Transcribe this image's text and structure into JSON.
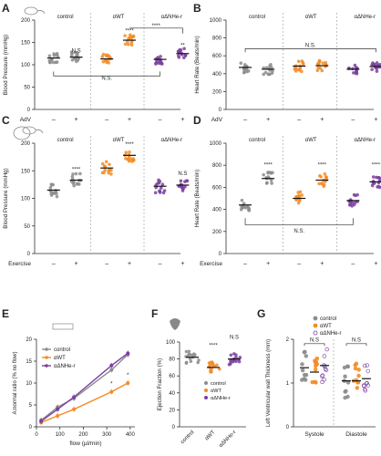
{
  "panel_letters": [
    "A",
    "B",
    "C",
    "D",
    "E",
    "F",
    "G"
  ],
  "colors": {
    "control": "#8c8c8c",
    "awt": "#f28c28",
    "adn": "#7b3fa0",
    "axis": "#333333",
    "dash": "#9a9a9a"
  },
  "groups": [
    "control",
    "α^WT",
    "αΔN^He-r"
  ],
  "groups_display": [
    "control",
    "αWT",
    "αΔNHe-r"
  ],
  "chart_data": [
    {
      "panel": "A",
      "type": "scatter",
      "ylabel": "Blood Pressure (mmHg)",
      "ylim": [
        0,
        200
      ],
      "yticks": [
        0,
        50,
        100,
        150,
        200
      ],
      "row_label": "AdV",
      "row_values": [
        "–",
        "+",
        "–",
        "+",
        "–",
        "+"
      ],
      "series": [
        {
          "group": "control",
          "treatment": "–",
          "mean": 115
        },
        {
          "group": "control",
          "treatment": "+",
          "mean": 117
        },
        {
          "group": "α^WT",
          "treatment": "–",
          "mean": 113
        },
        {
          "group": "α^WT",
          "treatment": "+",
          "mean": 155
        },
        {
          "group": "αΔN^He-r",
          "treatment": "–",
          "mean": 112
        },
        {
          "group": "αΔN^He-r",
          "treatment": "+",
          "mean": 125
        }
      ],
      "annotations": [
        "N.S",
        "****",
        "****",
        "**",
        "N.S."
      ]
    },
    {
      "panel": "B",
      "type": "scatter",
      "ylabel": "Heart Rate (Beats/min)",
      "ylim": [
        0,
        1000
      ],
      "yticks": [
        0,
        200,
        400,
        600,
        800,
        1000
      ],
      "row_label": "AdV",
      "row_values": [
        "–",
        "+",
        "–",
        "+",
        "–",
        "+"
      ],
      "series": [
        {
          "group": "control",
          "treatment": "–",
          "mean": 470
        },
        {
          "group": "control",
          "treatment": "+",
          "mean": 450
        },
        {
          "group": "α^WT",
          "treatment": "–",
          "mean": 485
        },
        {
          "group": "α^WT",
          "treatment": "+",
          "mean": 490
        },
        {
          "group": "αΔN^He-r",
          "treatment": "–",
          "mean": 450
        },
        {
          "group": "αΔN^He-r",
          "treatment": "+",
          "mean": 480
        }
      ],
      "annotations": [
        "N.S."
      ]
    },
    {
      "panel": "C",
      "type": "scatter",
      "ylabel": "Blood Pressure (mmHg)",
      "ylim": [
        0,
        200
      ],
      "yticks": [
        0,
        50,
        100,
        150,
        200
      ],
      "row_label": "Exercise",
      "row_values": [
        "–",
        "+",
        "–",
        "+",
        "–",
        "+"
      ],
      "series": [
        {
          "group": "control",
          "treatment": "–",
          "mean": 115
        },
        {
          "group": "control",
          "treatment": "+",
          "mean": 133
        },
        {
          "group": "α^WT",
          "treatment": "–",
          "mean": 155
        },
        {
          "group": "α^WT",
          "treatment": "+",
          "mean": 178
        },
        {
          "group": "αΔN^He-r",
          "treatment": "–",
          "mean": 122
        },
        {
          "group": "αΔN^He-r",
          "treatment": "+",
          "mean": 124
        }
      ],
      "annotations": [
        "****",
        "****",
        "N.S"
      ]
    },
    {
      "panel": "D",
      "type": "scatter",
      "ylabel": "Heart Rate (Beats/min)",
      "ylim": [
        0,
        1000
      ],
      "yticks": [
        0,
        200,
        400,
        600,
        800,
        1000
      ],
      "row_label": "Exercise",
      "row_values": [
        "–",
        "+",
        "–",
        "+",
        "–",
        "+"
      ],
      "series": [
        {
          "group": "control",
          "treatment": "–",
          "mean": 440
        },
        {
          "group": "control",
          "treatment": "+",
          "mean": 680
        },
        {
          "group": "α^WT",
          "treatment": "–",
          "mean": 500
        },
        {
          "group": "α^WT",
          "treatment": "+",
          "mean": 665
        },
        {
          "group": "αΔN^He-r",
          "treatment": "–",
          "mean": 480
        },
        {
          "group": "αΔN^He-r",
          "treatment": "+",
          "mean": 650
        }
      ],
      "annotations": [
        "****",
        "****",
        "****",
        "N.S."
      ]
    },
    {
      "panel": "E",
      "type": "line",
      "xlabel": "flow (µl/min)",
      "ylabel": "A:normal ratio (% no flow)",
      "xlim": [
        0,
        420
      ],
      "xticks": [
        0,
        100,
        200,
        300,
        400
      ],
      "ylim": [
        0,
        20
      ],
      "yticks": [
        0,
        5,
        10,
        15,
        20
      ],
      "x": [
        20,
        90,
        160,
        320,
        390
      ],
      "series": [
        {
          "name": "control",
          "values": [
            1.5,
            4.5,
            6.5,
            13.0,
            16.5
          ]
        },
        {
          "name": "αWT",
          "values": [
            1.0,
            2.5,
            4.0,
            8.0,
            10.0
          ]
        },
        {
          "name": "αΔNHe-r",
          "values": [
            1.3,
            4.0,
            6.8,
            14.0,
            16.8
          ]
        }
      ],
      "annotations": [
        "*",
        "*"
      ]
    },
    {
      "panel": "F",
      "type": "scatter",
      "ylabel": "Ejection Fraction (%)",
      "ylim": [
        0,
        100
      ],
      "yticks": [
        0,
        20,
        40,
        60,
        80,
        100
      ],
      "categories": [
        "control",
        "αWT",
        "αΔNHe-r"
      ],
      "values": [
        82,
        70,
        80
      ],
      "annotations": [
        "****",
        "N.S"
      ]
    },
    {
      "panel": "G",
      "type": "scatter",
      "ylabel": "Left Ventricular wall Thickness (mm)",
      "ylim": [
        0,
        2
      ],
      "yticks": [
        0,
        1,
        2
      ],
      "categories": [
        "Systole",
        "Diastole"
      ],
      "series": [
        {
          "name": "control",
          "values": [
            1.35,
            1.05
          ]
        },
        {
          "name": "αWT",
          "values": [
            1.25,
            1.05
          ]
        },
        {
          "name": "αΔNHe-r",
          "values": [
            1.4,
            1.1
          ]
        }
      ],
      "annotations": [
        "N.S",
        "N.S"
      ]
    }
  ]
}
